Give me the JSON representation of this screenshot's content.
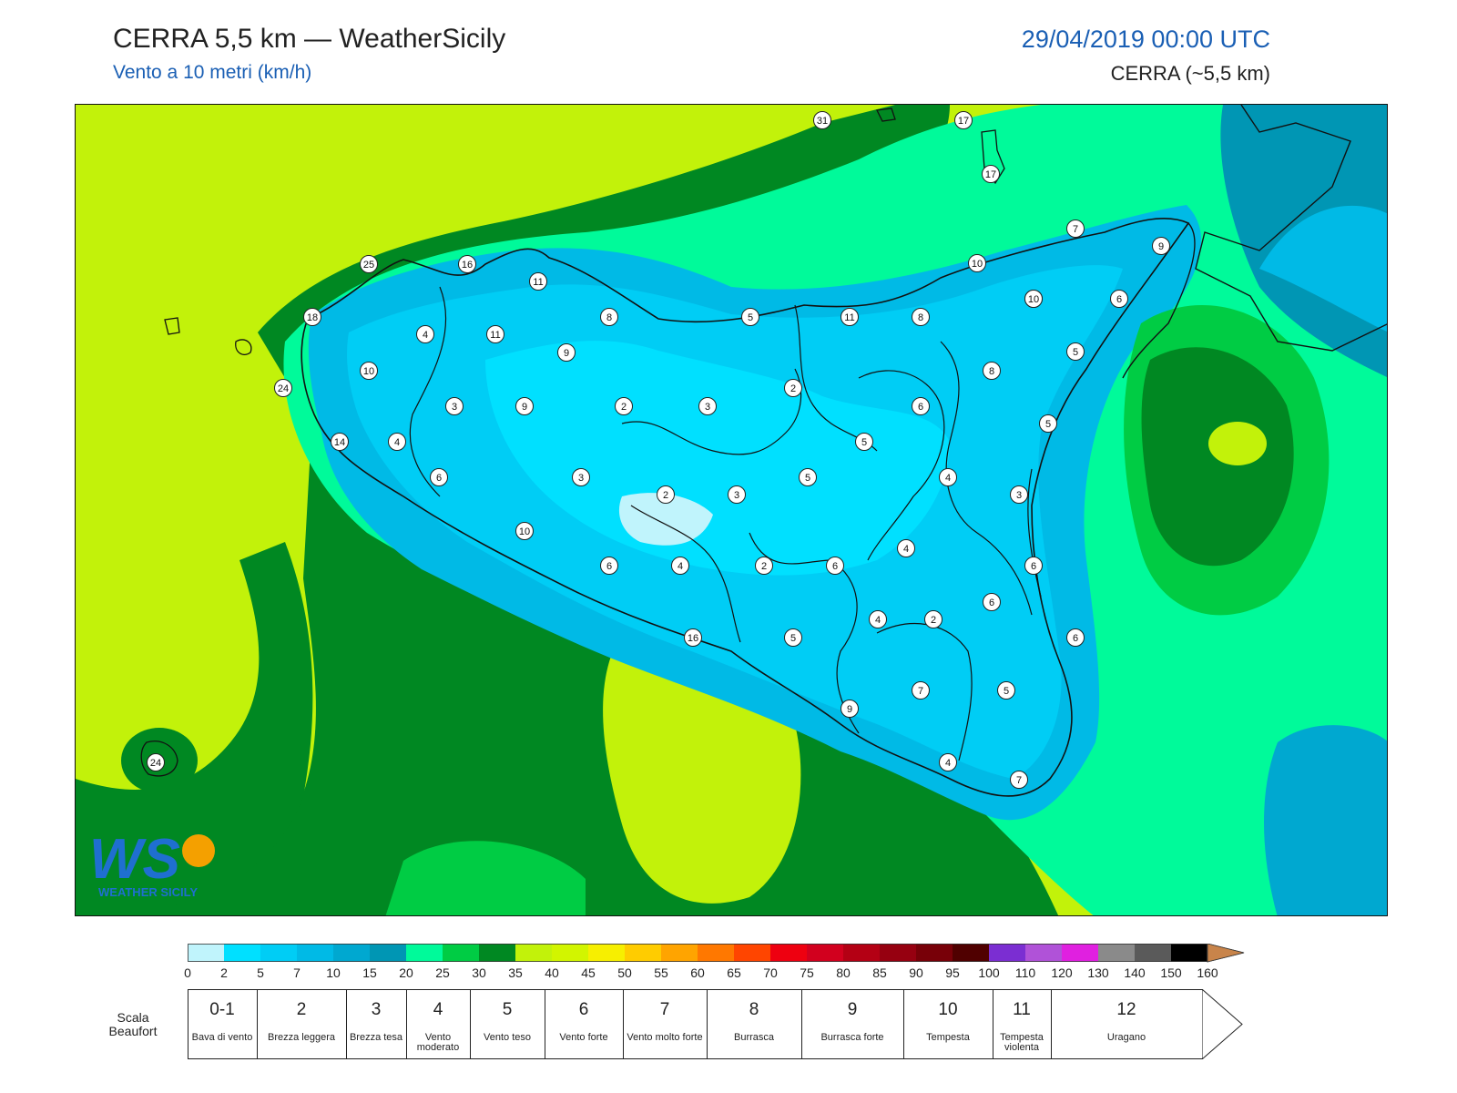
{
  "header": {
    "title": "CERRA 5,5 km — WeatherSicily",
    "subtitle": "Vento a 10 metri (km/h)",
    "date": "29/04/2019 00:00 UTC",
    "model": "CERRA (~5,5 km)"
  },
  "colorbar": {
    "ticks": [
      "0",
      "2",
      "5",
      "7",
      "10",
      "15",
      "20",
      "25",
      "30",
      "35",
      "40",
      "45",
      "50",
      "55",
      "60",
      "65",
      "70",
      "75",
      "80",
      "85",
      "90",
      "95",
      "100",
      "110",
      "120",
      "130",
      "140",
      "150",
      "160"
    ],
    "colors": [
      "#c0f4fc",
      "#00e0ff",
      "#00cdf5",
      "#00bae6",
      "#00a8d0",
      "#0096b4",
      "#00fa9a",
      "#00cc44",
      "#008822",
      "#c2f20a",
      "#d2f500",
      "#f7ef00",
      "#ffcc00",
      "#ffa400",
      "#ff7800",
      "#ff4500",
      "#ee0010",
      "#d2001e",
      "#b40014",
      "#960010",
      "#780008",
      "#500000",
      "#7b2ed2",
      "#b052d8",
      "#e020e0",
      "#8a8a8a",
      "#5a5a5a",
      "#000000",
      "#8a4a28",
      "#c8844a"
    ]
  },
  "beaufort": {
    "label": "Scala Beaufort",
    "cells": [
      {
        "num": "0-1",
        "desc": "Bava di vento"
      },
      {
        "num": "2",
        "desc": "Brezza leggera"
      },
      {
        "num": "3",
        "desc": "Brezza tesa"
      },
      {
        "num": "4",
        "desc": "Vento moderato"
      },
      {
        "num": "5",
        "desc": "Vento teso"
      },
      {
        "num": "6",
        "desc": "Vento forte"
      },
      {
        "num": "7",
        "desc": "Vento molto forte"
      },
      {
        "num": "8",
        "desc": "Burrasca"
      },
      {
        "num": "9",
        "desc": "Burrasca forte"
      },
      {
        "num": "10",
        "desc": "Tempesta"
      },
      {
        "num": "11",
        "desc": "Tempesta violenta"
      },
      {
        "num": "12",
        "desc": "Uragano"
      }
    ]
  },
  "logo": {
    "letters": "WS",
    "text": "WEATHER SICILY"
  },
  "stations": [
    {
      "v": "31"
    },
    {
      "v": "17"
    },
    {
      "v": "17"
    },
    {
      "v": "25"
    },
    {
      "v": "16"
    },
    {
      "v": "11"
    },
    {
      "v": "7"
    },
    {
      "v": "9"
    },
    {
      "v": "18"
    },
    {
      "v": "10"
    },
    {
      "v": "10"
    },
    {
      "v": "6"
    },
    {
      "v": "4"
    },
    {
      "v": "11"
    },
    {
      "v": "8"
    },
    {
      "v": "5"
    },
    {
      "v": "11"
    },
    {
      "v": "8"
    },
    {
      "v": "4"
    },
    {
      "v": "9"
    },
    {
      "v": "10"
    },
    {
      "v": "5"
    },
    {
      "v": "24"
    },
    {
      "v": "8"
    },
    {
      "v": "3"
    },
    {
      "v": "9"
    },
    {
      "v": "2"
    },
    {
      "v": "3"
    },
    {
      "v": "2"
    },
    {
      "v": "6"
    },
    {
      "v": "14"
    },
    {
      "v": "4"
    },
    {
      "v": "5"
    },
    {
      "v": "5"
    },
    {
      "v": "6"
    },
    {
      "v": "3"
    },
    {
      "v": "5"
    },
    {
      "v": "4"
    },
    {
      "v": "2"
    },
    {
      "v": "3"
    },
    {
      "v": "3"
    },
    {
      "v": "10"
    },
    {
      "v": "4"
    },
    {
      "v": "6"
    },
    {
      "v": "2"
    },
    {
      "v": "6"
    },
    {
      "v": "4"
    },
    {
      "v": "6"
    },
    {
      "v": "6"
    },
    {
      "v": "4"
    },
    {
      "v": "2"
    },
    {
      "v": "6"
    },
    {
      "v": "16"
    },
    {
      "v": "5"
    },
    {
      "v": "7"
    },
    {
      "v": "5"
    },
    {
      "v": "9"
    },
    {
      "v": "4"
    },
    {
      "v": "7"
    },
    {
      "v": "24"
    }
  ]
}
